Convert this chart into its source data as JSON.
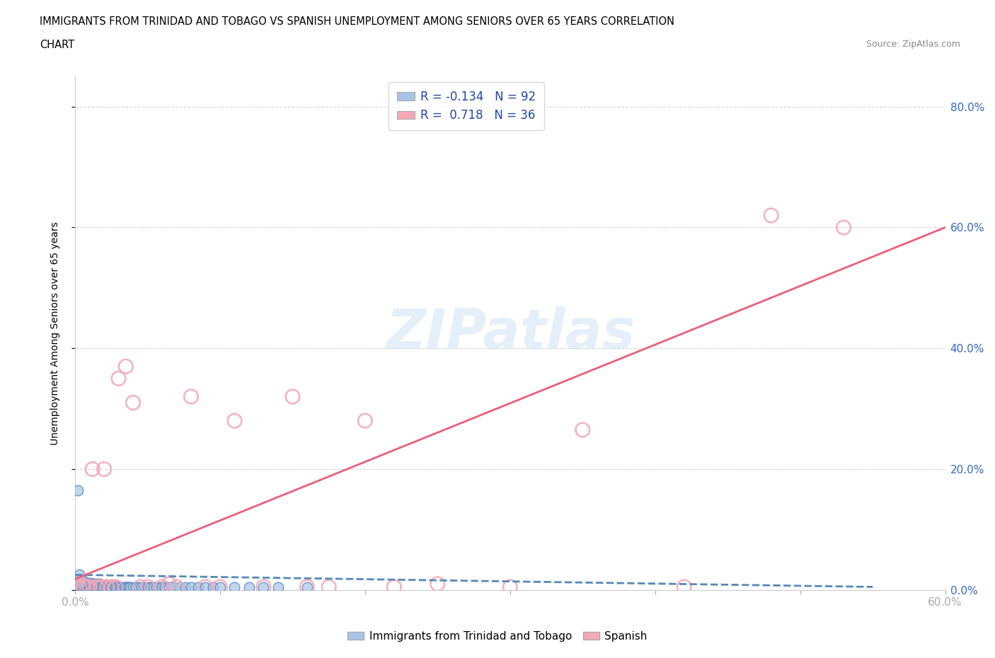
{
  "title_line1": "IMMIGRANTS FROM TRINIDAD AND TOBAGO VS SPANISH UNEMPLOYMENT AMONG SENIORS OVER 65 YEARS CORRELATION",
  "title_line2": "CHART",
  "source": "Source: ZipAtlas.com",
  "ylabel": "Unemployment Among Seniors over 65 years",
  "xlim": [
    0,
    0.6
  ],
  "ylim": [
    0,
    0.85
  ],
  "xticks": [
    0.0,
    0.1,
    0.2,
    0.3,
    0.4,
    0.5,
    0.6
  ],
  "yticks": [
    0.0,
    0.2,
    0.4,
    0.6,
    0.8
  ],
  "legend1_label": "R = -0.134   N = 92",
  "legend2_label": "R =  0.718   N = 36",
  "watermark": "ZIPatlas",
  "blue_color": "#a8c4e8",
  "pink_color": "#f5a8b8",
  "blue_line_color": "#5588bb",
  "pink_line_color": "#e8607a",
  "blue_scatter_x": [
    0.001,
    0.001,
    0.002,
    0.002,
    0.002,
    0.003,
    0.003,
    0.003,
    0.004,
    0.004,
    0.004,
    0.005,
    0.005,
    0.005,
    0.005,
    0.006,
    0.006,
    0.006,
    0.007,
    0.007,
    0.007,
    0.008,
    0.008,
    0.009,
    0.009,
    0.01,
    0.01,
    0.01,
    0.011,
    0.011,
    0.012,
    0.012,
    0.013,
    0.013,
    0.014,
    0.014,
    0.015,
    0.015,
    0.016,
    0.016,
    0.017,
    0.017,
    0.018,
    0.019,
    0.02,
    0.02,
    0.021,
    0.022,
    0.023,
    0.024,
    0.025,
    0.026,
    0.027,
    0.028,
    0.029,
    0.03,
    0.031,
    0.032,
    0.034,
    0.035,
    0.036,
    0.037,
    0.038,
    0.04,
    0.042,
    0.044,
    0.046,
    0.048,
    0.05,
    0.052,
    0.054,
    0.056,
    0.058,
    0.06,
    0.062,
    0.065,
    0.068,
    0.072,
    0.076,
    0.08,
    0.085,
    0.09,
    0.095,
    0.1,
    0.11,
    0.12,
    0.13,
    0.14,
    0.16,
    0.002,
    0.003,
    0.004
  ],
  "blue_scatter_y": [
    0.005,
    0.01,
    0.005,
    0.015,
    0.008,
    0.005,
    0.01,
    0.012,
    0.005,
    0.008,
    0.015,
    0.005,
    0.008,
    0.01,
    0.012,
    0.005,
    0.008,
    0.015,
    0.005,
    0.008,
    0.012,
    0.005,
    0.01,
    0.005,
    0.008,
    0.005,
    0.008,
    0.012,
    0.005,
    0.01,
    0.005,
    0.008,
    0.005,
    0.01,
    0.005,
    0.008,
    0.005,
    0.01,
    0.005,
    0.008,
    0.005,
    0.01,
    0.005,
    0.005,
    0.005,
    0.008,
    0.005,
    0.005,
    0.008,
    0.005,
    0.005,
    0.005,
    0.008,
    0.005,
    0.005,
    0.005,
    0.005,
    0.005,
    0.005,
    0.005,
    0.005,
    0.005,
    0.005,
    0.005,
    0.005,
    0.005,
    0.005,
    0.005,
    0.005,
    0.005,
    0.005,
    0.005,
    0.005,
    0.005,
    0.005,
    0.005,
    0.005,
    0.005,
    0.005,
    0.005,
    0.005,
    0.005,
    0.005,
    0.005,
    0.005,
    0.005,
    0.005,
    0.005,
    0.005,
    0.165,
    0.025,
    0.01
  ],
  "pink_scatter_x": [
    0.003,
    0.005,
    0.006,
    0.008,
    0.01,
    0.012,
    0.015,
    0.018,
    0.02,
    0.022,
    0.025,
    0.028,
    0.03,
    0.035,
    0.04,
    0.045,
    0.05,
    0.06,
    0.065,
    0.07,
    0.08,
    0.09,
    0.1,
    0.11,
    0.13,
    0.15,
    0.16,
    0.175,
    0.2,
    0.22,
    0.25,
    0.3,
    0.35,
    0.42,
    0.48,
    0.53
  ],
  "pink_scatter_y": [
    0.005,
    0.008,
    0.005,
    0.005,
    0.005,
    0.2,
    0.005,
    0.005,
    0.2,
    0.005,
    0.005,
    0.005,
    0.35,
    0.37,
    0.31,
    0.005,
    0.005,
    0.005,
    0.01,
    0.005,
    0.32,
    0.005,
    0.005,
    0.28,
    0.005,
    0.32,
    0.005,
    0.005,
    0.28,
    0.005,
    0.01,
    0.005,
    0.265,
    0.005,
    0.62,
    0.6
  ],
  "blue_trend_x": [
    0.0,
    0.55
  ],
  "blue_trend_y": [
    0.025,
    0.005
  ],
  "pink_trend_x": [
    0.0,
    0.6
  ],
  "pink_trend_y": [
    0.018,
    0.6
  ]
}
